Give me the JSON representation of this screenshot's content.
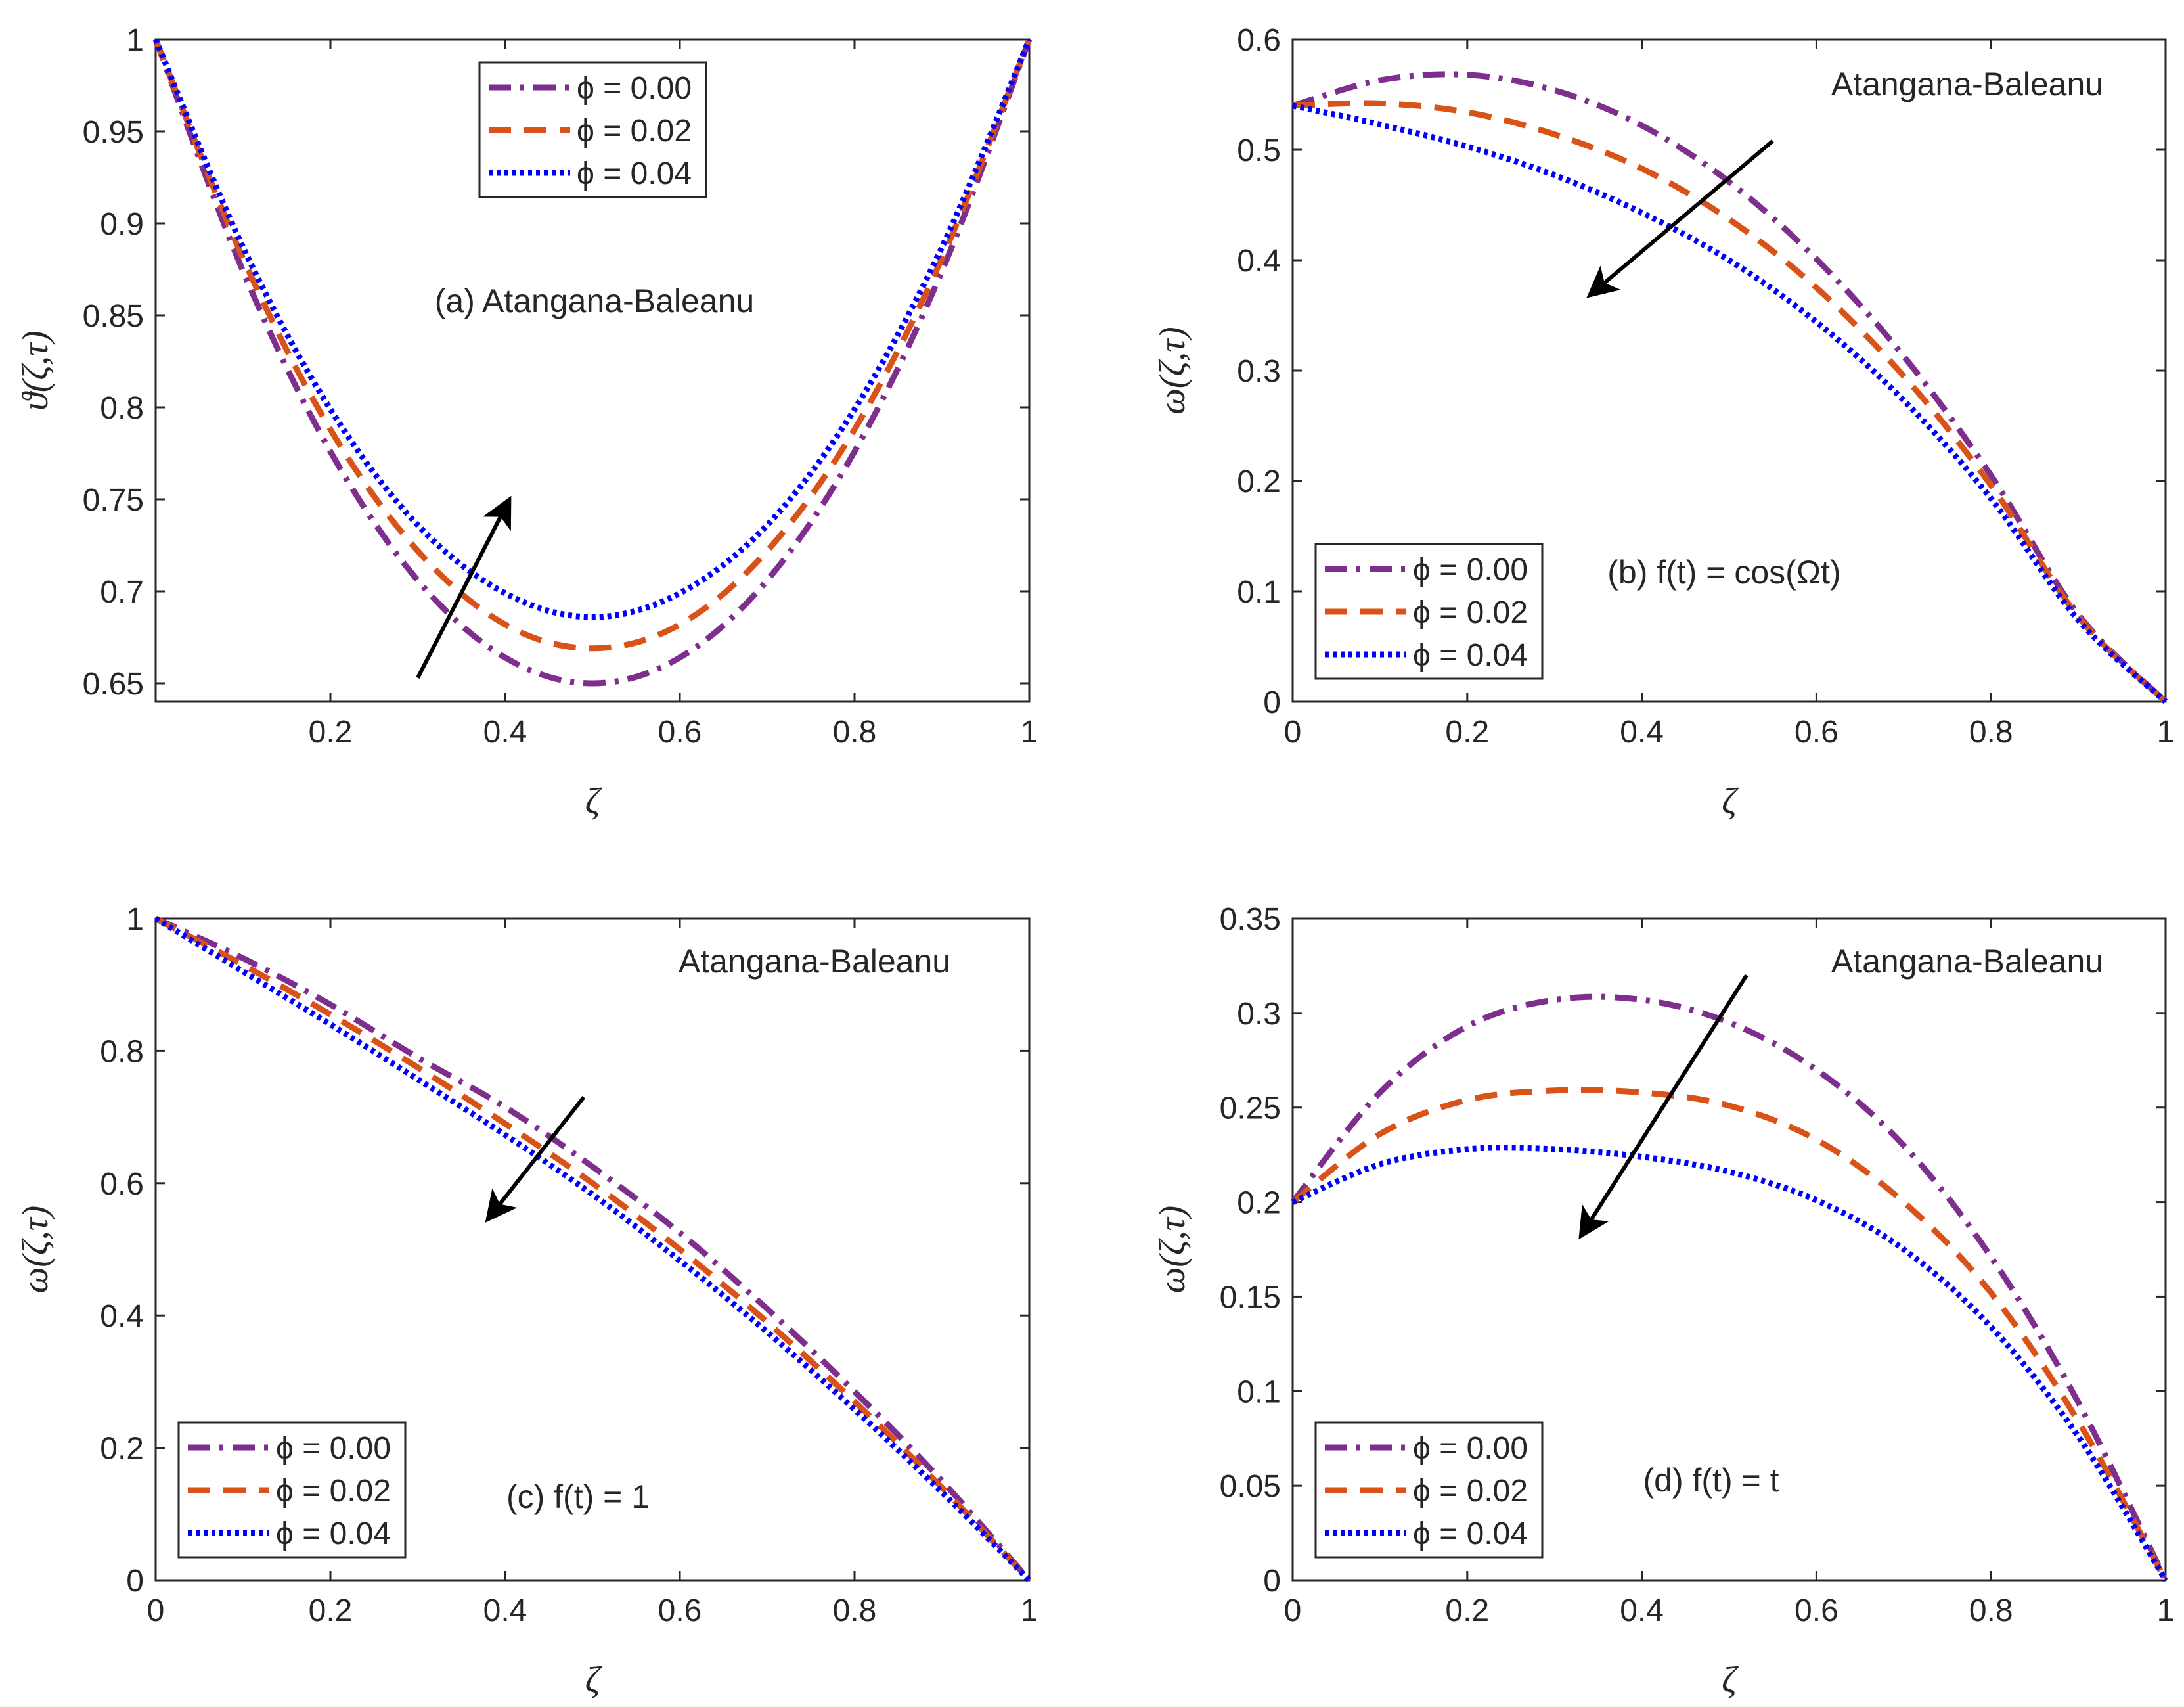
{
  "series_styles": [
    {
      "color": "#7E2F8E",
      "dash": "34 14 6 14",
      "width": 9
    },
    {
      "color": "#D95319",
      "dash": "34 20",
      "width": 9
    },
    {
      "color": "#0000FF",
      "dash": "6 6",
      "width": 9
    }
  ],
  "chart_data": [
    {
      "type": "line",
      "panel": "a",
      "xlabel": "ζ",
      "ylabel": "ϑ(ζ,τ)",
      "xlim": [
        0,
        1
      ],
      "ylim": [
        0.64,
        1.0
      ],
      "xticks": [
        0.2,
        0.4,
        0.6,
        0.8,
        1
      ],
      "xtick_labels": [
        "0.2",
        "0.4",
        "0.6",
        "0.8",
        "1"
      ],
      "yticks": [
        0.65,
        0.7,
        0.75,
        0.8,
        0.85,
        0.9,
        0.95,
        1
      ],
      "ytick_labels": [
        "0.65",
        "0.7",
        "0.75",
        "0.8",
        "0.85",
        "0.9",
        "0.95",
        "1"
      ],
      "annotation": "(a) Atangana-Baleanu",
      "legend_location": "top-center",
      "x": [
        0,
        0.1,
        0.2,
        0.3,
        0.4,
        0.5,
        0.6,
        0.7,
        0.8,
        0.9,
        1.0
      ],
      "series": [
        {
          "name": "ϕ = 0.00",
          "values": [
            1.0,
            0.874,
            0.776,
            0.706,
            0.664,
            0.65,
            0.664,
            0.706,
            0.776,
            0.874,
            1.0
          ]
        },
        {
          "name": "ϕ = 0.02",
          "values": [
            1.0,
            0.881,
            0.788,
            0.722,
            0.682,
            0.669,
            0.682,
            0.722,
            0.788,
            0.881,
            1.0
          ]
        },
        {
          "name": "ϕ = 0.04",
          "values": [
            1.0,
            0.887,
            0.799,
            0.736,
            0.699,
            0.686,
            0.699,
            0.736,
            0.799,
            0.887,
            1.0
          ]
        }
      ],
      "arrow": {
        "from": [
          0.3,
          0.653
        ],
        "to": [
          0.405,
          0.75
        ]
      }
    },
    {
      "type": "line",
      "panel": "b",
      "xlabel": "ζ",
      "ylabel": "ω(ζ,τ)",
      "xlim": [
        0,
        1
      ],
      "ylim": [
        0,
        0.6
      ],
      "xticks": [
        0,
        0.2,
        0.4,
        0.6,
        0.8,
        1
      ],
      "xtick_labels": [
        "0",
        "0.2",
        "0.4",
        "0.6",
        "0.8",
        "1"
      ],
      "yticks": [
        0,
        0.1,
        0.2,
        0.3,
        0.4,
        0.5,
        0.6
      ],
      "ytick_labels": [
        "0",
        "0.1",
        "0.2",
        "0.3",
        "0.4",
        "0.5",
        "0.6"
      ],
      "annotation_top": "Atangana-Baleanu",
      "annotation": "(b) f(t) = cos(Ωt)",
      "legend_location": "bottom-left",
      "x": [
        0,
        0.1,
        0.2,
        0.3,
        0.4,
        0.5,
        0.6,
        0.7,
        0.8,
        0.9,
        1.0
      ],
      "series": [
        {
          "name": "ϕ = 0.00",
          "values": [
            0.54,
            0.563,
            0.568,
            0.554,
            0.522,
            0.471,
            0.401,
            0.313,
            0.205,
            0.079,
            0.0
          ]
        },
        {
          "name": "ϕ = 0.02",
          "values": [
            0.54,
            0.542,
            0.534,
            0.514,
            0.483,
            0.437,
            0.375,
            0.295,
            0.196,
            0.077,
            0.0
          ]
        },
        {
          "name": "ϕ = 0.04",
          "values": [
            0.54,
            0.523,
            0.503,
            0.477,
            0.443,
            0.4,
            0.344,
            0.273,
            0.184,
            0.074,
            0.0
          ]
        }
      ],
      "arrow": {
        "from": [
          0.55,
          0.508
        ],
        "to": [
          0.34,
          0.368
        ]
      }
    },
    {
      "type": "line",
      "panel": "c",
      "xlabel": "ζ",
      "ylabel": "ω(ζ,τ)",
      "xlim": [
        0,
        1
      ],
      "ylim": [
        0,
        1
      ],
      "xticks": [
        0,
        0.2,
        0.4,
        0.6,
        0.8,
        1
      ],
      "xtick_labels": [
        "0",
        "0.2",
        "0.4",
        "0.6",
        "0.8",
        "1"
      ],
      "yticks": [
        0,
        0.2,
        0.4,
        0.6,
        0.8,
        1
      ],
      "ytick_labels": [
        "0",
        "0.2",
        "0.4",
        "0.6",
        "0.8",
        "1"
      ],
      "annotation_top": "Atangana-Baleanu",
      "annotation": "(c) f(t) = 1",
      "legend_location": "bottom-left",
      "x": [
        0,
        0.1,
        0.2,
        0.3,
        0.4,
        0.5,
        0.6,
        0.7,
        0.8,
        0.9,
        1.0
      ],
      "series": [
        {
          "name": "ϕ = 0.00",
          "values": [
            1.0,
            0.94,
            0.87,
            0.79,
            0.715,
            0.625,
            0.525,
            0.41,
            0.285,
            0.15,
            0.0
          ]
        },
        {
          "name": "ϕ = 0.02",
          "values": [
            1.0,
            0.93,
            0.855,
            0.775,
            0.69,
            0.6,
            0.5,
            0.39,
            0.27,
            0.14,
            0.0
          ]
        },
        {
          "name": "ϕ = 0.04",
          "values": [
            1.0,
            0.92,
            0.84,
            0.757,
            0.673,
            0.583,
            0.483,
            0.375,
            0.258,
            0.133,
            0.0
          ]
        }
      ],
      "arrow": {
        "from": [
          0.49,
          0.73
        ],
        "to": [
          0.38,
          0.545
        ]
      }
    },
    {
      "type": "line",
      "panel": "d",
      "xlabel": "ζ",
      "ylabel": "ω(ζ,τ)",
      "xlim": [
        0,
        1
      ],
      "ylim": [
        0,
        0.35
      ],
      "xticks": [
        0,
        0.2,
        0.4,
        0.6,
        0.8,
        1
      ],
      "xtick_labels": [
        "0",
        "0.2",
        "0.4",
        "0.6",
        "0.8",
        "1"
      ],
      "yticks": [
        0,
        0.05,
        0.1,
        0.15,
        0.2,
        0.25,
        0.3,
        0.35
      ],
      "ytick_labels": [
        "0",
        "0.05",
        "0.1",
        "0.15",
        "0.2",
        "0.25",
        "0.3",
        "0.35"
      ],
      "annotation_top": "Atangana-Baleanu",
      "annotation": "(d) f(t) = t",
      "legend_location": "bottom-left",
      "x": [
        0,
        0.1,
        0.2,
        0.3,
        0.4,
        0.5,
        0.6,
        0.7,
        0.8,
        0.9,
        1.0
      ],
      "series": [
        {
          "name": "ϕ = 0.00",
          "values": [
            0.2,
            0.258,
            0.293,
            0.307,
            0.307,
            0.295,
            0.27,
            0.23,
            0.171,
            0.094,
            0.0
          ]
        },
        {
          "name": "ϕ = 0.02",
          "values": [
            0.2,
            0.236,
            0.254,
            0.259,
            0.258,
            0.251,
            0.233,
            0.2,
            0.152,
            0.084,
            0.0
          ]
        },
        {
          "name": "ϕ = 0.04",
          "values": [
            0.2,
            0.22,
            0.228,
            0.228,
            0.224,
            0.216,
            0.201,
            0.175,
            0.134,
            0.076,
            0.0
          ]
        }
      ],
      "arrow": {
        "from": [
          0.52,
          0.32
        ],
        "to": [
          0.33,
          0.182
        ]
      }
    }
  ]
}
